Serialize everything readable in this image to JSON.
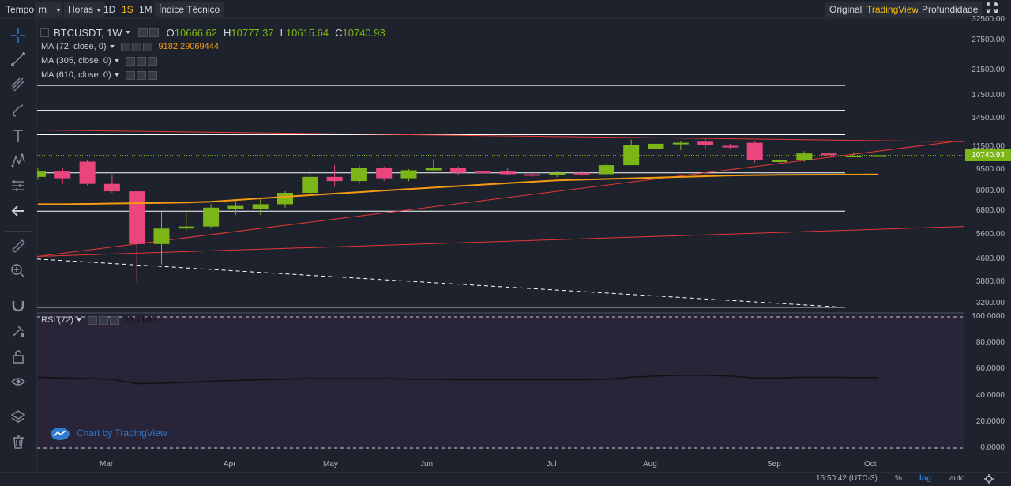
{
  "toolbar": {
    "tempo": "Tempo",
    "interval": "m",
    "hours": "Horas",
    "d1": "1D",
    "w1": "1S",
    "m1": "1M",
    "indicators": "Índice Técnico",
    "original": "Original",
    "tradingview": "TradingView",
    "depth": "Profundidade"
  },
  "legend": {
    "symbol": "BTCUSDT, 1W",
    "o_label": "O",
    "o": "10666.62",
    "h_label": "H",
    "h": "10777.37",
    "l_label": "L",
    "l": "10615.64",
    "c_label": "C",
    "c": "10740.93",
    "ma72": "MA (72, close, 0)",
    "ma72_value": "9182.29069444",
    "ma305": "MA (305, close, 0)",
    "ma610": "MA (610, close, 0)",
    "rsi": "RSI (72)",
    "rsi_value": "53.7100"
  },
  "price_axis": {
    "ticks": [
      "32500.00",
      "27500.00",
      "21500.00",
      "17500.00",
      "14500.00",
      "11500.00",
      "9500.00",
      "8000.00",
      "6800.00",
      "5600.00",
      "4600.00",
      "3800.00",
      "3200.00"
    ],
    "current": "10740.93"
  },
  "rsi_axis": {
    "ticks": [
      "100.0000",
      "80.0000",
      "60.0000",
      "40.0000",
      "20.0000",
      "0.0000"
    ]
  },
  "time_axis": {
    "labels": [
      "Mar",
      "Apr",
      "May",
      "Jun",
      "Jul",
      "Aug",
      "Sep",
      "Oct"
    ]
  },
  "watermark": "Chart by TradingView",
  "footer": {
    "time": "16:50:42 (UTC-3)",
    "percent": "%",
    "log": "log",
    "auto": "auto"
  },
  "colors": {
    "up": "#7cb518",
    "down": "#e8467c",
    "ma": "#f39c12",
    "trend": "#e53935",
    "accent": "#f0b90b",
    "rsi_bg": "#2a2438"
  },
  "chart_data": {
    "type": "candlestick",
    "symbol": "BTCUSDT",
    "interval": "1W",
    "scale": "log",
    "candles": [
      {
        "o": 9000,
        "h": 9700,
        "l": 8800,
        "c": 9400
      },
      {
        "o": 9400,
        "h": 9700,
        "l": 8500,
        "c": 8900
      },
      {
        "o": 10200,
        "h": 10300,
        "l": 8400,
        "c": 8500
      },
      {
        "o": 8500,
        "h": 9200,
        "l": 7900,
        "c": 8000
      },
      {
        "o": 8000,
        "h": 8100,
        "l": 3800,
        "c": 5200
      },
      {
        "o": 5200,
        "h": 6800,
        "l": 4400,
        "c": 5900
      },
      {
        "o": 5900,
        "h": 6800,
        "l": 5800,
        "c": 6000
      },
      {
        "o": 6000,
        "h": 7200,
        "l": 5900,
        "c": 7000
      },
      {
        "o": 6900,
        "h": 7400,
        "l": 6600,
        "c": 7100
      },
      {
        "o": 6900,
        "h": 7500,
        "l": 6600,
        "c": 7200
      },
      {
        "o": 7200,
        "h": 8000,
        "l": 7000,
        "c": 7900
      },
      {
        "o": 7900,
        "h": 9500,
        "l": 7700,
        "c": 9000
      },
      {
        "o": 9000,
        "h": 9900,
        "l": 8300,
        "c": 8700
      },
      {
        "o": 8700,
        "h": 9900,
        "l": 8500,
        "c": 9700
      },
      {
        "o": 9700,
        "h": 9800,
        "l": 8700,
        "c": 8900
      },
      {
        "o": 8900,
        "h": 9600,
        "l": 8700,
        "c": 9500
      },
      {
        "o": 9500,
        "h": 10400,
        "l": 9400,
        "c": 9700
      },
      {
        "o": 9700,
        "h": 9800,
        "l": 9100,
        "c": 9300
      },
      {
        "o": 9400,
        "h": 9700,
        "l": 9100,
        "c": 9300
      },
      {
        "o": 9400,
        "h": 9700,
        "l": 9100,
        "c": 9200
      },
      {
        "o": 9200,
        "h": 9300,
        "l": 9000,
        "c": 9150
      },
      {
        "o": 9150,
        "h": 9400,
        "l": 9000,
        "c": 9300
      },
      {
        "o": 9300,
        "h": 9400,
        "l": 9100,
        "c": 9200
      },
      {
        "o": 9200,
        "h": 10000,
        "l": 9150,
        "c": 9900
      },
      {
        "o": 9900,
        "h": 12200,
        "l": 9900,
        "c": 11700
      },
      {
        "o": 11300,
        "h": 11900,
        "l": 11100,
        "c": 11800
      },
      {
        "o": 11800,
        "h": 12100,
        "l": 11200,
        "c": 11900
      },
      {
        "o": 12000,
        "h": 12400,
        "l": 11300,
        "c": 11700
      },
      {
        "o": 11600,
        "h": 11800,
        "l": 11300,
        "c": 11500
      },
      {
        "o": 11900,
        "h": 12100,
        "l": 10100,
        "c": 10300
      },
      {
        "o": 10200,
        "h": 10400,
        "l": 10000,
        "c": 10300
      },
      {
        "o": 10300,
        "h": 11100,
        "l": 10200,
        "c": 10900
      },
      {
        "o": 10900,
        "h": 11200,
        "l": 10400,
        "c": 10750
      },
      {
        "o": 10700,
        "h": 11000,
        "l": 10600,
        "c": 10700
      },
      {
        "o": 10666.62,
        "h": 10777.37,
        "l": 10615.64,
        "c": 10740.93
      }
    ],
    "ma72": [
      7200,
      7200,
      7220,
      7240,
      7260,
      7280,
      7300,
      7350,
      7450,
      7550,
      7650,
      7750,
      7850,
      7950,
      8050,
      8150,
      8250,
      8350,
      8450,
      8550,
      8650,
      8750,
      8800,
      8850,
      8900,
      8950,
      9000,
      9050,
      9100,
      9130,
      9150,
      9160,
      9170,
      9175,
      9182.29
    ],
    "horizontal_levels": [
      19000,
      15500,
      12700,
      10950,
      9300,
      6800,
      3100
    ],
    "rsi": [
      54,
      53.5,
      53,
      52.5,
      49,
      49.5,
      50,
      51,
      51.5,
      52,
      52.5,
      53,
      53,
      53,
      53,
      52.5,
      52.5,
      52,
      52,
      52,
      52,
      52,
      52,
      52.5,
      54,
      55,
      55.5,
      55.5,
      55,
      53.5,
      53.5,
      54,
      54,
      53.8,
      53.71
    ],
    "rsi_range": [
      0,
      100
    ]
  }
}
